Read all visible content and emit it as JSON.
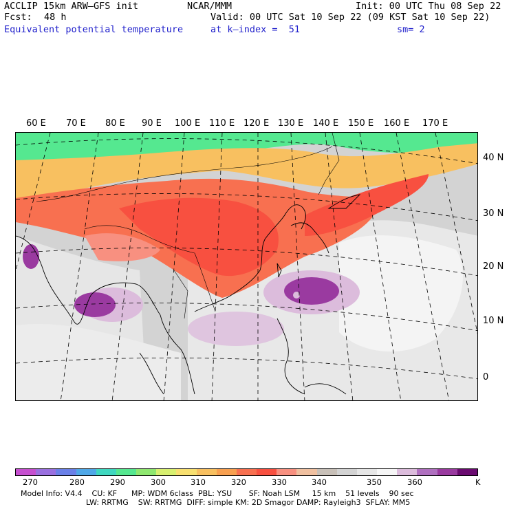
{
  "header": {
    "model_line": "ACCLIP 15km ARW—GFS init",
    "center": "NCAR/MMM",
    "init": "Init: 00 UTC Thu 08 Sep 22",
    "fcst_label": "Fcst:",
    "fcst_value": "48 h",
    "valid": "Valid: 00 UTC Sat 10 Sep 22 (09 KST Sat 10 Sep 22)",
    "field": "Equivalent potential temperature",
    "level": "at k—index =  51",
    "smooth": "sm= 2"
  },
  "map": {
    "lon_labels": [
      "60 E",
      "70 E",
      "80 E",
      "90 E",
      "100 E",
      "110 E",
      "120 E",
      "130 E",
      "140 E",
      "150 E",
      "160 E",
      "170 E"
    ],
    "lat_labels": [
      "40 N",
      "30 N",
      "20 N",
      "10 N",
      "0"
    ]
  },
  "colorbar": {
    "tick_labels": [
      "270",
      "280",
      "290",
      "300",
      "310",
      "320",
      "330",
      "340",
      "350",
      "360",
      "K"
    ],
    "colors": [
      "#c64fd0",
      "#9a70e0",
      "#6a80e8",
      "#4fa8e8",
      "#3fd8c0",
      "#55e890",
      "#8fe870",
      "#d8f070",
      "#f8e070",
      "#f8c060",
      "#f8a050",
      "#f87050",
      "#f85040",
      "#f89080",
      "#f0c0a0",
      "#c8c0b8",
      "#d3d3d3",
      "#e6e6e6",
      "#f6f6f6",
      "#dcbcdc",
      "#b070c0",
      "#9a3aa0",
      "#6a0a70"
    ],
    "field_colors": {
      "moist_tropics": "#e8e8e8",
      "dry_land": "#f87050",
      "cold_north": "#55e890",
      "typhoon": "#9a3aa0",
      "halo": "#dcbcdc"
    }
  },
  "footer": {
    "line1": "Model Info: V4.4    CU: KF      MP: WDM 6class  PBL: YSU       SF: Noah LSM     15 km    51 levels    90 sec",
    "line2": "LW: RRTMG    SW: RRTMG  DIFF: simple KM: 2D Smagor DAMP: Rayleigh3  SFLAY: MM5"
  }
}
